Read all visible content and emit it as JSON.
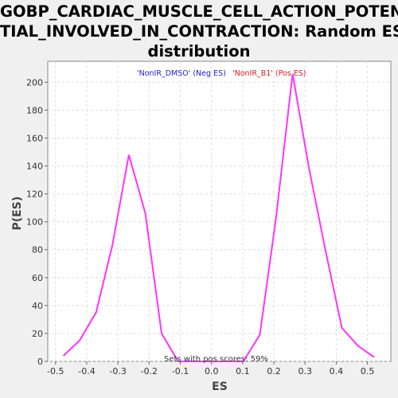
{
  "title_lines": [
    "GOBP_CARDIAC_MUSCLE_CELL_ACTION_POTEN",
    "TIAL_INVOLVED_IN_CONTRACTION: Random ES",
    "distribution"
  ],
  "chart_data": {
    "type": "line",
    "title": "GOBP_CARDIAC_MUSCLE_CELL_ACTION_POTENTIAL_INVOLVED_IN_CONTRACTION: Random ES distribution",
    "xlabel": "ES",
    "ylabel": "P(ES)",
    "xlim": [
      -0.525,
      0.575
    ],
    "ylim": [
      0,
      215
    ],
    "x_ticks": [
      -0.5,
      -0.4,
      -0.3,
      -0.2,
      -0.1,
      0.0,
      0.1,
      0.2,
      0.3,
      0.4,
      0.5
    ],
    "x_tick_labels": [
      "-0.5",
      "-0.4",
      "-0.3",
      "-0.2",
      "-0.1",
      "0.0",
      "0.1",
      "0.2",
      "0.3",
      "0.4",
      "0.5"
    ],
    "y_ticks": [
      0,
      20,
      40,
      60,
      80,
      100,
      120,
      140,
      160,
      180,
      200
    ],
    "y_tick_labels": [
      "0",
      "20",
      "40",
      "60",
      "80",
      "100",
      "120",
      "140",
      "160",
      "180",
      "200"
    ],
    "grid": true,
    "line_color": "#ff33ff",
    "series": [
      {
        "x": [
          -0.475,
          -0.423,
          -0.37,
          -0.318,
          -0.265,
          -0.212,
          -0.16,
          -0.107,
          -0.055,
          -0.002,
          0.05,
          0.102,
          0.155,
          0.207,
          0.26,
          0.312,
          0.365,
          0.418,
          0.47,
          0.522
        ],
        "y": [
          4,
          15,
          35,
          83,
          148,
          106,
          20,
          0,
          0,
          0,
          0,
          0,
          19,
          103,
          206,
          139,
          80,
          24,
          11,
          3
        ]
      }
    ],
    "legend": [
      {
        "label": "'NonIR_DMSO' (Neg ES)",
        "color": "#2222cc"
      },
      {
        "label": "'NonIR_B1' (Pos ES)",
        "color": "#cc2222"
      }
    ],
    "legend_position": "top-center",
    "annotation": "Sets with pos scores: 59%"
  }
}
